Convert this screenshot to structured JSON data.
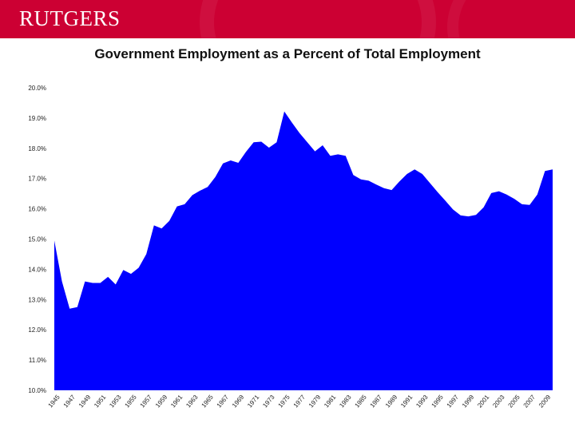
{
  "header": {
    "logo_text": "RUTGERS",
    "brand_color": "#cc0033"
  },
  "chart_data": {
    "type": "area",
    "title": "Government Employment as a Percent of Total Employment",
    "xlabel": "",
    "ylabel": "",
    "color": "#0000ff",
    "grid": false,
    "x": [
      1945,
      1946,
      1947,
      1948,
      1949,
      1950,
      1951,
      1952,
      1953,
      1954,
      1955,
      1956,
      1957,
      1958,
      1959,
      1960,
      1961,
      1962,
      1963,
      1964,
      1965,
      1966,
      1967,
      1968,
      1969,
      1970,
      1971,
      1972,
      1973,
      1974,
      1975,
      1976,
      1977,
      1978,
      1979,
      1980,
      1981,
      1982,
      1983,
      1984,
      1985,
      1986,
      1987,
      1988,
      1989,
      1990,
      1991,
      1992,
      1993,
      1994,
      1995,
      1996,
      1997,
      1998,
      1999,
      2000,
      2001,
      2002,
      2003,
      2004,
      2005,
      2006,
      2007,
      2008,
      2009,
      2010
    ],
    "values": [
      14.95,
      13.6,
      12.7,
      12.75,
      13.6,
      13.55,
      13.55,
      13.75,
      13.5,
      13.98,
      13.85,
      14.05,
      14.5,
      15.45,
      15.35,
      15.6,
      16.08,
      16.15,
      16.45,
      16.6,
      16.72,
      17.05,
      17.5,
      17.6,
      17.52,
      17.88,
      18.2,
      18.22,
      18.02,
      18.2,
      19.22,
      18.85,
      18.5,
      18.2,
      17.9,
      18.1,
      17.75,
      17.8,
      17.75,
      17.12,
      16.97,
      16.93,
      16.8,
      16.68,
      16.62,
      16.9,
      17.15,
      17.3,
      17.15,
      16.85,
      16.55,
      16.27,
      15.98,
      15.78,
      15.75,
      15.8,
      16.05,
      16.52,
      16.58,
      16.47,
      16.33,
      16.15,
      16.13,
      16.47,
      17.25,
      17.3
    ],
    "ylim": [
      10,
      20
    ],
    "yticks": [
      "10.0%",
      "11.0%",
      "12.0%",
      "13.0%",
      "14.0%",
      "15.0%",
      "16.0%",
      "17.0%",
      "18.0%",
      "19.0%",
      "20.0%"
    ],
    "xticks": [
      "1945",
      "1947",
      "1949",
      "1951",
      "1953",
      "1955",
      "1957",
      "1959",
      "1961",
      "1963",
      "1965",
      "1967",
      "1969",
      "1971",
      "1973",
      "1975",
      "1977",
      "1979",
      "1981",
      "1983",
      "1985",
      "1987",
      "1989",
      "1991",
      "1993",
      "1995",
      "1997",
      "1999",
      "2001",
      "2003",
      "2005",
      "2007",
      "2009"
    ]
  }
}
